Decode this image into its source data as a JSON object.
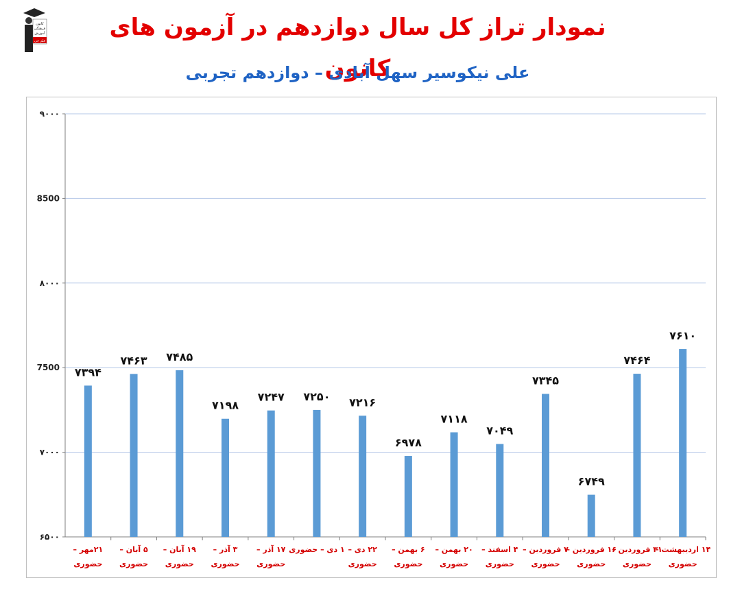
{
  "header": {
    "title": "نمودار تراز کل سال دوازدهم در آزمون های کانون",
    "subtitle": "علی نیکوسیر سهل آبادی – دوازدهم تجربی",
    "logo_text": [
      "کانون",
      "فرهنگی",
      "آموزش",
      "قلم چی"
    ]
  },
  "colors": {
    "bar": "#5b9bd5",
    "grid": "#b4c7e7",
    "title": "#e30000",
    "subtitle": "#1f63c4",
    "category_label": "#d40000"
  },
  "chart_data": {
    "type": "bar",
    "categories": [
      [
        "۲۱مهر –",
        "حضوری"
      ],
      [
        "۵ آبان –",
        "حضوری"
      ],
      [
        "۱۹ آبان –",
        "حضوری"
      ],
      [
        "۳ آذر –",
        "حضوری"
      ],
      [
        "۱۷ آذر –",
        "حضوری"
      ],
      [
        "۱ دی – حضوری",
        ""
      ],
      [
        "۲۲ دی –",
        "حضوری"
      ],
      [
        "۶ بهمن –",
        "حضوری"
      ],
      [
        "۲۰ بهمن –",
        "حضوری"
      ],
      [
        "۴ اسفند –",
        "حضوری"
      ],
      [
        "۷ فروردین –",
        "حضوری"
      ],
      [
        "۱۶ فروردین –",
        "حضوری"
      ],
      [
        "۳۱ فروردین –",
        "حضوری"
      ],
      [
        "۱۴ اردیبهشت –",
        "حضوری"
      ]
    ],
    "values": [
      7394,
      7463,
      7485,
      7198,
      7247,
      7250,
      7216,
      6978,
      7118,
      7049,
      7345,
      6749,
      7464,
      7610
    ],
    "data_labels": [
      "۷۳۹۴",
      "۷۴۶۳",
      "۷۴۸۵",
      "۷۱۹۸",
      "۷۲۴۷",
      "۷۲۵۰",
      "۷۲۱۶",
      "۶۹۷۸",
      "۷۱۱۸",
      "۷۰۴۹",
      "۷۳۴۵",
      "۶۷۴۹",
      "۷۴۶۴",
      "۷۶۱۰"
    ],
    "yticks": [
      6500,
      7000,
      7500,
      8000,
      8500,
      9000
    ],
    "ytick_labels": [
      "۶۵۰۰",
      "۷۰۰۰",
      "7500",
      "۸۰۰۰",
      "8500",
      "۹۰۰۰"
    ],
    "ylim": [
      6500,
      9000
    ],
    "grid": true,
    "legend": "none"
  }
}
